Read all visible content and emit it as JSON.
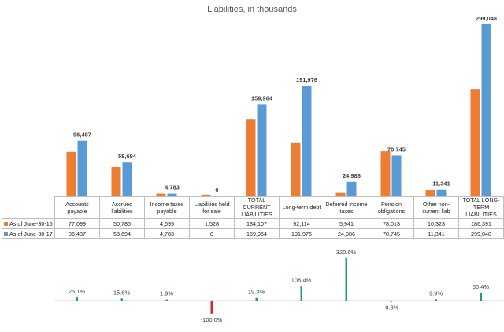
{
  "chart_data": [
    {
      "type": "bar",
      "title": "Liabilities, in thousands",
      "categories": [
        "Accounts payable",
        "Accrued liabilities",
        "Income taxes payable",
        "Liabilities held for sale",
        "TOTAL CURRENT LIABILITIES",
        "Long-term debt",
        "Deferred income taxes",
        "Pension obligations",
        "Other non-current liab",
        "TOTAL LONG-TERM LIABILITIES"
      ],
      "series": [
        {
          "name": "As of June-30-16",
          "color": "#ED7D31",
          "values": [
            77099,
            50785,
            4695,
            1528,
            134107,
            92114,
            5941,
            78013,
            10323,
            186391
          ],
          "display": [
            "77,099",
            "50,785",
            "4,695",
            "1,528",
            "134,107",
            "92,114",
            "5,941",
            "78,013",
            "10,323",
            "186,391"
          ]
        },
        {
          "name": "As of June-30-17",
          "color": "#5B9BD5",
          "values": [
            96487,
            58694,
            4783,
            0,
            159964,
            191976,
            24986,
            70745,
            11341,
            299048
          ],
          "display": [
            "96,487",
            "58,694",
            "4,783",
            "0",
            "159,964",
            "191,976",
            "24,986",
            "70,745",
            "11,341",
            "299,048"
          ]
        }
      ],
      "data_labels": [
        "96,487",
        "58,694",
        "4,783",
        "0",
        "159,964",
        "191,976",
        "24,986",
        "70,745",
        "11,341",
        "299,048"
      ],
      "data_table": true,
      "gridlines": false
    },
    {
      "type": "bar",
      "categories": [
        "Accounts payable",
        "Accrued liabilities",
        "Income taxes payable",
        "Liabilities held for sale",
        "TOTAL CURRENT LIABILITIES",
        "Long-term debt",
        "Deferred income taxes",
        "Pension obligations",
        "Other non-current liab",
        "TOTAL LONG-TERM LIABILITIES"
      ],
      "values": [
        25.1,
        15.6,
        1.9,
        -100.0,
        19.3,
        108.4,
        320.6,
        -9.3,
        9.9,
        60.4
      ],
      "labels": [
        "25.1%",
        "15.6%",
        "1.9%",
        "-100.0%",
        "19.3%",
        "108.4%",
        "320.6%",
        "-9.3%",
        "9.9%",
        "60.4%"
      ],
      "positive_color": "#21A366",
      "negative_color": "#E2202C"
    }
  ]
}
